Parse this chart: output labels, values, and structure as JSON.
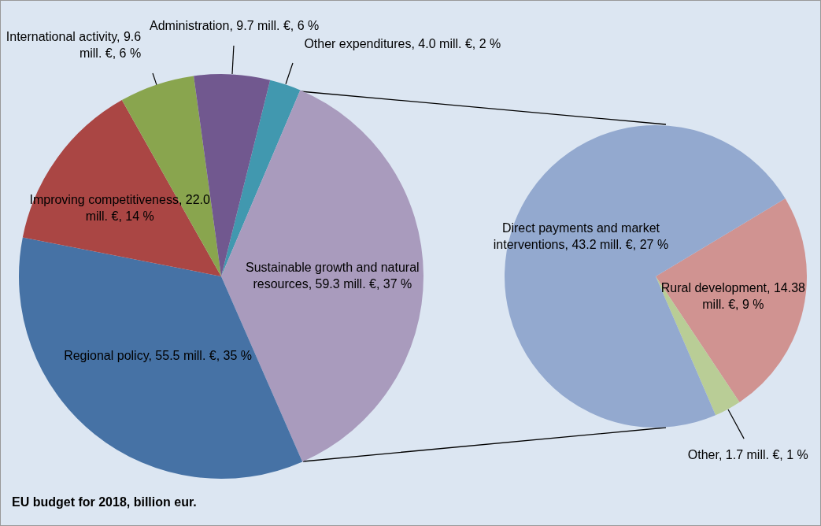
{
  "chart_data": [
    {
      "type": "pie",
      "title": "EU budget for 2018, billion eur.",
      "categories": [
        "Other expenditures",
        "Sustainable growth and natural resources",
        "Regional policy",
        "Improving competitiveness",
        "International activity",
        "Administration"
      ],
      "values": [
        4.0,
        59.3,
        55.5,
        22.0,
        9.6,
        9.7
      ],
      "colors": [
        "#4198af",
        "#a99bbd",
        "#4672a5",
        "#aa4644",
        "#89a54e",
        "#71588f"
      ],
      "value_labels": [
        "4.0 mill. €, 2 %",
        "59.3 mill. €, 37 %",
        "55.5 mill. €, 35 %",
        "22.0 mill. €, 14 %",
        "9.6 mill. €, 6 %",
        "9.7 mill. €, 6 %"
      ]
    },
    {
      "type": "pie",
      "categories": [
        "Rural development",
        "Other",
        "Direct payments and market interventions"
      ],
      "values": [
        14.38,
        1.7,
        43.2
      ],
      "colors": [
        "#d09391",
        "#b9cd96",
        "#93a9cf"
      ],
      "value_labels": [
        "14.38 mill. €, 9 %",
        "1.7 mill. €, 1 %",
        "43.2 mill. €, 27 %"
      ]
    }
  ]
}
